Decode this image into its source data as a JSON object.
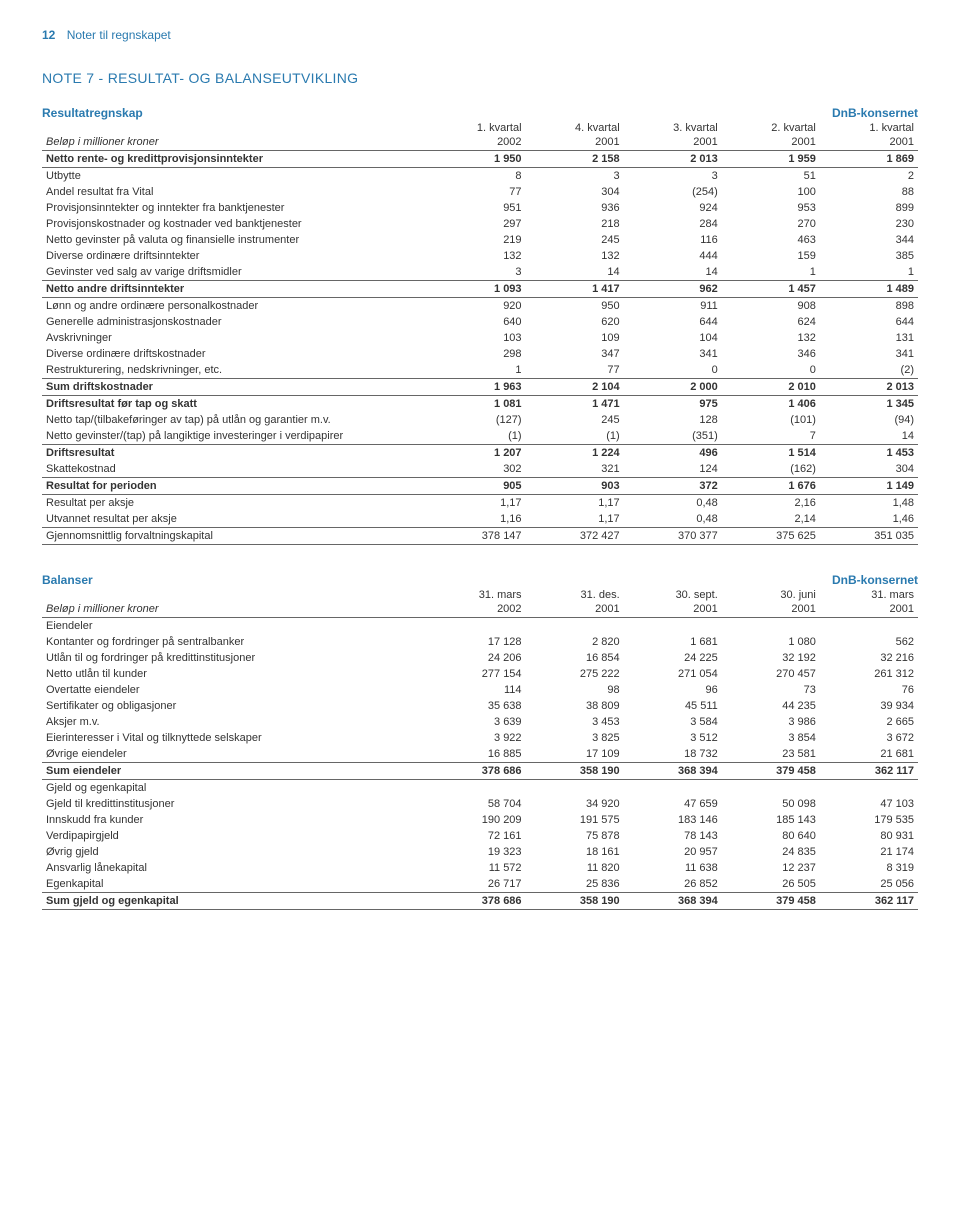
{
  "page_number": "12",
  "page_title": "Noter til regnskapet",
  "note_title": "NOTE 7 - RESULTAT- OG BALANSEUTVIKLING",
  "colors": {
    "brand": "#2a7aaf",
    "text": "#333333",
    "rule": "#666666",
    "background": "#ffffff"
  },
  "income": {
    "heading_left": "Resultatregnskap",
    "heading_right": "DnB-konsernet",
    "col_label": "Beløp i millioner kroner",
    "columns": [
      {
        "l1": "1. kvartal",
        "l2": "2002"
      },
      {
        "l1": "4. kvartal",
        "l2": "2001"
      },
      {
        "l1": "3. kvartal",
        "l2": "2001"
      },
      {
        "l1": "2. kvartal",
        "l2": "2001"
      },
      {
        "l1": "1. kvartal",
        "l2": "2001"
      }
    ],
    "rows": [
      {
        "label": "Netto rente- og kredittprovisjonsinntekter",
        "v": [
          "1 950",
          "2 158",
          "2 013",
          "1 959",
          "1 869"
        ],
        "bold": true,
        "rule_top": true,
        "rule_bottom": true
      },
      {
        "label": "Utbytte",
        "v": [
          "8",
          "3",
          "3",
          "51",
          "2"
        ]
      },
      {
        "label": "Andel resultat fra Vital",
        "v": [
          "77",
          "304",
          "(254)",
          "100",
          "88"
        ]
      },
      {
        "label": "Provisjonsinntekter og inntekter fra banktjenester",
        "v": [
          "951",
          "936",
          "924",
          "953",
          "899"
        ]
      },
      {
        "label": "Provisjonskostnader og kostnader ved banktjenester",
        "v": [
          "297",
          "218",
          "284",
          "270",
          "230"
        ]
      },
      {
        "label": "Netto gevinster på valuta og finansielle instrumenter",
        "v": [
          "219",
          "245",
          "116",
          "463",
          "344"
        ]
      },
      {
        "label": "Diverse ordinære driftsinntekter",
        "v": [
          "132",
          "132",
          "444",
          "159",
          "385"
        ]
      },
      {
        "label": "Gevinster ved salg av varige driftsmidler",
        "v": [
          "3",
          "14",
          "14",
          "1",
          "1"
        ]
      },
      {
        "label": "Netto andre driftsinntekter",
        "v": [
          "1 093",
          "1 417",
          "962",
          "1 457",
          "1 489"
        ],
        "bold": true,
        "rule_top": true,
        "rule_bottom": true
      },
      {
        "label": "Lønn og andre ordinære personalkostnader",
        "v": [
          "920",
          "950",
          "911",
          "908",
          "898"
        ]
      },
      {
        "label": "Generelle administrasjonskostnader",
        "v": [
          "640",
          "620",
          "644",
          "624",
          "644"
        ]
      },
      {
        "label": "Avskrivninger",
        "v": [
          "103",
          "109",
          "104",
          "132",
          "131"
        ]
      },
      {
        "label": "Diverse ordinære driftskostnader",
        "v": [
          "298",
          "347",
          "341",
          "346",
          "341"
        ]
      },
      {
        "label": "Restrukturering, nedskrivninger, etc.",
        "v": [
          "1",
          "77",
          "0",
          "0",
          "(2)"
        ]
      },
      {
        "label": "Sum driftskostnader",
        "v": [
          "1 963",
          "2 104",
          "2 000",
          "2 010",
          "2 013"
        ],
        "bold": true,
        "rule_top": true,
        "rule_bottom": true
      },
      {
        "label": "Driftsresultat før tap og skatt",
        "v": [
          "1 081",
          "1 471",
          "975",
          "1 406",
          "1 345"
        ],
        "bold": true
      },
      {
        "label": "Netto tap/(tilbakeføringer av tap) på utlån og garantier m.v.",
        "v": [
          "(127)",
          "245",
          "128",
          "(101)",
          "(94)"
        ]
      },
      {
        "label": "Netto gevinster/(tap) på langiktige investeringer i verdipapirer",
        "v": [
          "(1)",
          "(1)",
          "(351)",
          "7",
          "14"
        ]
      },
      {
        "label": "Driftsresultat",
        "v": [
          "1 207",
          "1 224",
          "496",
          "1 514",
          "1 453"
        ],
        "bold": true,
        "rule_top": true
      },
      {
        "label": "Skattekostnad",
        "v": [
          "302",
          "321",
          "124",
          "(162)",
          "304"
        ]
      },
      {
        "label": "Resultat for perioden",
        "v": [
          "905",
          "903",
          "372",
          "1 676",
          "1 149"
        ],
        "bold": true,
        "rule_top": true,
        "rule_bottom": true
      },
      {
        "label": "Resultat per aksje",
        "v": [
          "1,17",
          "1,17",
          "0,48",
          "2,16",
          "1,48"
        ]
      },
      {
        "label": "Utvannet resultat per aksje",
        "v": [
          "1,16",
          "1,17",
          "0,48",
          "2,14",
          "1,46"
        ]
      },
      {
        "label": "Gjennomsnittlig forvaltningskapital",
        "v": [
          "378 147",
          "372 427",
          "370 377",
          "375 625",
          "351 035"
        ],
        "rule_top": true,
        "rule_bottom": true
      }
    ]
  },
  "balance": {
    "heading_left": "Balanser",
    "heading_right": "DnB-konsernet",
    "col_label": "Beløp i millioner kroner",
    "columns": [
      {
        "l1": "31. mars",
        "l2": "2002"
      },
      {
        "l1": "31. des.",
        "l2": "2001"
      },
      {
        "l1": "30. sept.",
        "l2": "2001"
      },
      {
        "l1": "30. juni",
        "l2": "2001"
      },
      {
        "l1": "31. mars",
        "l2": "2001"
      }
    ],
    "rows": [
      {
        "label": "Eiendeler",
        "group": true,
        "rule_top": true
      },
      {
        "label": "Kontanter og fordringer på sentralbanker",
        "v": [
          "17 128",
          "2 820",
          "1 681",
          "1 080",
          "562"
        ]
      },
      {
        "label": "Utlån til og fordringer på kredittinstitusjoner",
        "v": [
          "24 206",
          "16 854",
          "24 225",
          "32 192",
          "32 216"
        ]
      },
      {
        "label": "Netto utlån til kunder",
        "v": [
          "277 154",
          "275 222",
          "271 054",
          "270 457",
          "261 312"
        ]
      },
      {
        "label": "Overtatte eiendeler",
        "v": [
          "114",
          "98",
          "96",
          "73",
          "76"
        ]
      },
      {
        "label": "Sertifikater og obligasjoner",
        "v": [
          "35 638",
          "38 809",
          "45 511",
          "44 235",
          "39 934"
        ]
      },
      {
        "label": "Aksjer m.v.",
        "v": [
          "3 639",
          "3 453",
          "3 584",
          "3 986",
          "2 665"
        ]
      },
      {
        "label": "Eierinteresser i Vital og tilknyttede selskaper",
        "v": [
          "3 922",
          "3 825",
          "3 512",
          "3 854",
          "3 672"
        ]
      },
      {
        "label": "Øvrige eiendeler",
        "v": [
          "16 885",
          "17 109",
          "18 732",
          "23 581",
          "21 681"
        ]
      },
      {
        "label": "Sum eiendeler",
        "v": [
          "378 686",
          "358 190",
          "368 394",
          "379 458",
          "362 117"
        ],
        "bold": true,
        "rule_top": true,
        "rule_bottom": true
      },
      {
        "label": "Gjeld og egenkapital",
        "group": true
      },
      {
        "label": "Gjeld til kredittinstitusjoner",
        "v": [
          "58 704",
          "34 920",
          "47 659",
          "50 098",
          "47 103"
        ]
      },
      {
        "label": "Innskudd fra kunder",
        "v": [
          "190 209",
          "191 575",
          "183 146",
          "185 143",
          "179 535"
        ]
      },
      {
        "label": "Verdipapirgjeld",
        "v": [
          "72 161",
          "75 878",
          "78 143",
          "80 640",
          "80 931"
        ]
      },
      {
        "label": "Øvrig gjeld",
        "v": [
          "19 323",
          "18 161",
          "20 957",
          "24 835",
          "21 174"
        ]
      },
      {
        "label": "Ansvarlig lånekapital",
        "v": [
          "11 572",
          "11 820",
          "11 638",
          "12 237",
          "8 319"
        ]
      },
      {
        "label": "Egenkapital",
        "v": [
          "26 717",
          "25 836",
          "26 852",
          "26 505",
          "25 056"
        ]
      },
      {
        "label": "Sum gjeld og egenkapital",
        "v": [
          "378 686",
          "358 190",
          "368 394",
          "379 458",
          "362 117"
        ],
        "bold": true,
        "rule_top": true,
        "rule_bottom": true
      }
    ]
  }
}
